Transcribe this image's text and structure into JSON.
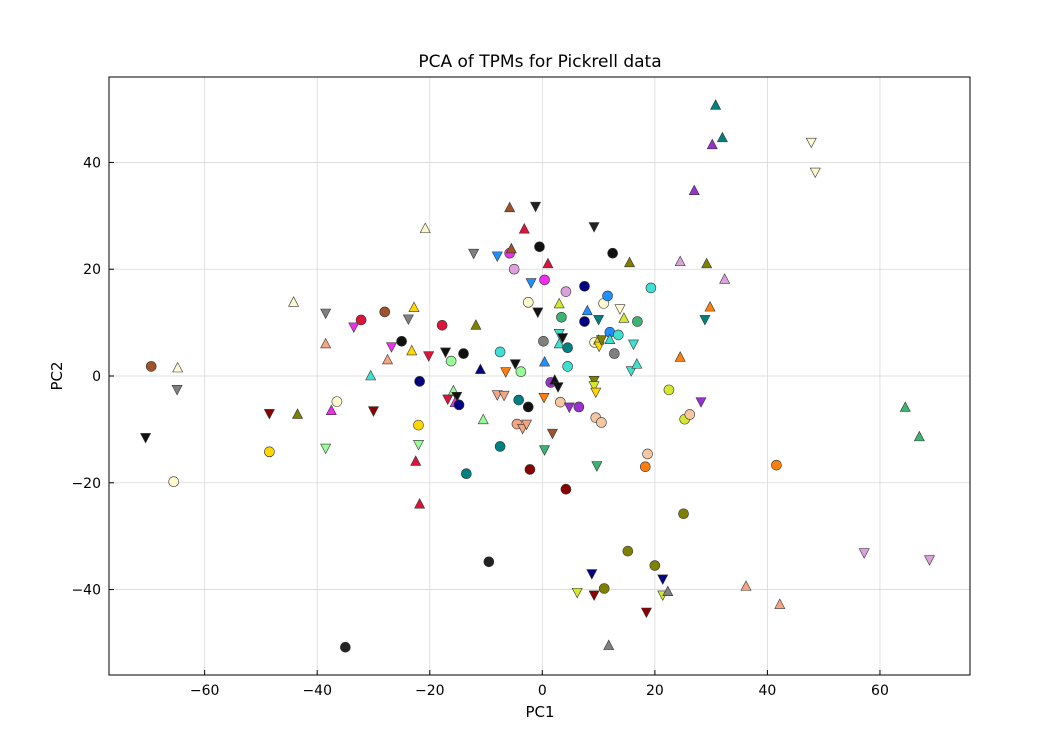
{
  "chart_data": {
    "type": "scatter",
    "title": "PCA of TPMs for Pickrell data",
    "xlabel": "PC1",
    "ylabel": "PC2",
    "xlim": [
      -77,
      76
    ],
    "ylim": [
      -56,
      56
    ],
    "xticks": [
      -60,
      -40,
      -20,
      0,
      20,
      40,
      60
    ],
    "yticks": [
      -40,
      -20,
      0,
      20,
      40
    ],
    "xtick_labels": [
      "−60",
      "−40",
      "−20",
      "0",
      "20",
      "40",
      "60"
    ],
    "ytick_labels": [
      "−40",
      "−20",
      "0",
      "20",
      "40"
    ],
    "grid": true,
    "points": [
      {
        "x": -70.5,
        "y": -11.5,
        "m": "v",
        "c": "#111111"
      },
      {
        "x": -69.5,
        "y": 1.8,
        "m": "o",
        "c": "#a0522d"
      },
      {
        "x": -65.5,
        "y": -19.8,
        "m": "o",
        "c": "#fffacd"
      },
      {
        "x": -64.8,
        "y": 1.5,
        "m": "^",
        "c": "#fffacd"
      },
      {
        "x": -64.9,
        "y": -2.5,
        "m": "v",
        "c": "#808080"
      },
      {
        "x": -48.5,
        "y": -14.2,
        "m": "o",
        "c": "#ffd700"
      },
      {
        "x": -48.5,
        "y": -7.0,
        "m": "v",
        "c": "#8b0000"
      },
      {
        "x": -44.2,
        "y": 13.8,
        "m": "^",
        "c": "#fffacd"
      },
      {
        "x": -43.5,
        "y": -7.2,
        "m": "^",
        "c": "#808000"
      },
      {
        "x": -38.5,
        "y": 11.8,
        "m": "v",
        "c": "#808080"
      },
      {
        "x": -38.5,
        "y": 6.0,
        "m": "^",
        "c": "#f4a582"
      },
      {
        "x": -38.5,
        "y": -13.5,
        "m": "v",
        "c": "#98fb98"
      },
      {
        "x": -37.5,
        "y": -6.5,
        "m": "^",
        "c": "#ee30ee"
      },
      {
        "x": -36.5,
        "y": -4.8,
        "m": "o",
        "c": "#fffacd"
      },
      {
        "x": -35.0,
        "y": -50.8,
        "m": "o",
        "c": "#222222"
      },
      {
        "x": -33.5,
        "y": 9.2,
        "m": "v",
        "c": "#ee30ee"
      },
      {
        "x": -32.2,
        "y": 10.5,
        "m": "o",
        "c": "#dc143c"
      },
      {
        "x": -30.5,
        "y": 0.0,
        "m": "^",
        "c": "#40e0d0"
      },
      {
        "x": -30.0,
        "y": -6.5,
        "m": "v",
        "c": "#8b0000"
      },
      {
        "x": -28.0,
        "y": 12.0,
        "m": "o",
        "c": "#a0522d"
      },
      {
        "x": -27.5,
        "y": 3.0,
        "m": "^",
        "c": "#f4a582"
      },
      {
        "x": -26.8,
        "y": 5.5,
        "m": "v",
        "c": "#ee30ee"
      },
      {
        "x": -25.0,
        "y": 6.5,
        "m": "o",
        "c": "#111111"
      },
      {
        "x": -23.8,
        "y": 10.7,
        "m": "v",
        "c": "#808080"
      },
      {
        "x": -23.2,
        "y": 4.7,
        "m": "^",
        "c": "#ffd700"
      },
      {
        "x": -22.8,
        "y": 12.8,
        "m": "^",
        "c": "#ffd700"
      },
      {
        "x": -22.5,
        "y": -16.0,
        "m": "^",
        "c": "#dc143c"
      },
      {
        "x": -22.0,
        "y": -12.8,
        "m": "v",
        "c": "#98fb98"
      },
      {
        "x": -22.0,
        "y": -9.2,
        "m": "o",
        "c": "#ffd700"
      },
      {
        "x": -21.8,
        "y": -1.0,
        "m": "o",
        "c": "#000080"
      },
      {
        "x": -21.8,
        "y": -24.0,
        "m": "^",
        "c": "#dc143c"
      },
      {
        "x": -20.8,
        "y": 27.6,
        "m": "^",
        "c": "#fffacd"
      },
      {
        "x": -20.2,
        "y": 3.8,
        "m": "v",
        "c": "#dc143c"
      },
      {
        "x": -17.8,
        "y": 9.5,
        "m": "o",
        "c": "#dc143c"
      },
      {
        "x": -17.2,
        "y": 4.5,
        "m": "v",
        "c": "#111111"
      },
      {
        "x": -16.8,
        "y": -4.3,
        "m": "v",
        "c": "#dc143c"
      },
      {
        "x": -16.2,
        "y": 2.8,
        "m": "o",
        "c": "#98fb98"
      },
      {
        "x": -15.8,
        "y": -2.8,
        "m": "^",
        "c": "#98fb98"
      },
      {
        "x": -15.2,
        "y": -3.8,
        "m": "v",
        "c": "#111111"
      },
      {
        "x": -15.5,
        "y": -5.0,
        "m": "^",
        "c": "#ee30ee"
      },
      {
        "x": -14.8,
        "y": -5.4,
        "m": "o",
        "c": "#000080"
      },
      {
        "x": -14.0,
        "y": 4.2,
        "m": "o",
        "c": "#111111"
      },
      {
        "x": -13.5,
        "y": -18.3,
        "m": "o",
        "c": "#008080"
      },
      {
        "x": -12.2,
        "y": 23.0,
        "m": "v",
        "c": "#808080"
      },
      {
        "x": -11.8,
        "y": 9.5,
        "m": "^",
        "c": "#808000"
      },
      {
        "x": -11.0,
        "y": 1.2,
        "m": "^",
        "c": "#000080"
      },
      {
        "x": -10.5,
        "y": -8.2,
        "m": "^",
        "c": "#98fb98"
      },
      {
        "x": -9.5,
        "y": -34.8,
        "m": "o",
        "c": "#222222"
      },
      {
        "x": -8.0,
        "y": 22.5,
        "m": "v",
        "c": "#1e90ff"
      },
      {
        "x": -8.0,
        "y": -3.5,
        "m": "v",
        "c": "#f4a582"
      },
      {
        "x": -7.5,
        "y": 4.5,
        "m": "o",
        "c": "#40e0d0"
      },
      {
        "x": -7.5,
        "y": -13.2,
        "m": "o",
        "c": "#008080"
      },
      {
        "x": -6.8,
        "y": -3.6,
        "m": "v",
        "c": "#f4a582"
      },
      {
        "x": -6.5,
        "y": 0.8,
        "m": "v",
        "c": "#ff7f0e"
      },
      {
        "x": -5.8,
        "y": 23.0,
        "m": "o",
        "c": "#ee30ee"
      },
      {
        "x": -5.8,
        "y": 31.5,
        "m": "^",
        "c": "#a0522d"
      },
      {
        "x": -5.5,
        "y": 23.8,
        "m": "^",
        "c": "#a0522d"
      },
      {
        "x": -5.0,
        "y": 20.0,
        "m": "o",
        "c": "#dda0dd"
      },
      {
        "x": -4.8,
        "y": 2.3,
        "m": "v",
        "c": "#111111"
      },
      {
        "x": -4.5,
        "y": -9.0,
        "m": "o",
        "c": "#f4a582"
      },
      {
        "x": -4.2,
        "y": -4.5,
        "m": "o",
        "c": "#008080"
      },
      {
        "x": -3.8,
        "y": 0.8,
        "m": "o",
        "c": "#98fb98"
      },
      {
        "x": -3.5,
        "y": -9.8,
        "m": "v",
        "c": "#f4a582"
      },
      {
        "x": -3.2,
        "y": 27.5,
        "m": "^",
        "c": "#dc143c"
      },
      {
        "x": -2.8,
        "y": -9.0,
        "m": "v",
        "c": "#f4a582"
      },
      {
        "x": -2.5,
        "y": 13.8,
        "m": "o",
        "c": "#fffacd"
      },
      {
        "x": -2.5,
        "y": -5.8,
        "m": "o",
        "c": "#111111"
      },
      {
        "x": -2.2,
        "y": -17.5,
        "m": "o",
        "c": "#8b0000"
      },
      {
        "x": -2.0,
        "y": 17.5,
        "m": "v",
        "c": "#1e90ff"
      },
      {
        "x": -1.2,
        "y": 31.8,
        "m": "v",
        "c": "#222222"
      },
      {
        "x": -0.8,
        "y": 12.0,
        "m": "v",
        "c": "#111111"
      },
      {
        "x": -0.5,
        "y": 24.2,
        "m": "o",
        "c": "#111111"
      },
      {
        "x": 0.2,
        "y": 6.5,
        "m": "o",
        "c": "#808080"
      },
      {
        "x": 0.3,
        "y": -4.0,
        "m": "v",
        "c": "#ff7f0e"
      },
      {
        "x": 0.4,
        "y": 2.6,
        "m": "^",
        "c": "#1e90ff"
      },
      {
        "x": 0.4,
        "y": -13.8,
        "m": "v",
        "c": "#3cb371"
      },
      {
        "x": 0.4,
        "y": 18.0,
        "m": "o",
        "c": "#ee30ee"
      },
      {
        "x": 1.0,
        "y": 21.0,
        "m": "^",
        "c": "#dc143c"
      },
      {
        "x": 1.5,
        "y": -1.2,
        "m": "o",
        "c": "#9932cc"
      },
      {
        "x": 1.8,
        "y": -10.7,
        "m": "v",
        "c": "#a0522d"
      },
      {
        "x": 2.2,
        "y": -0.8,
        "m": "^",
        "c": "#111111"
      },
      {
        "x": 2.8,
        "y": -2.0,
        "m": "v",
        "c": "#111111"
      },
      {
        "x": 3.0,
        "y": 13.5,
        "m": "^",
        "c": "#d4e830"
      },
      {
        "x": 3.0,
        "y": 8.0,
        "m": "v",
        "c": "#40e0d0"
      },
      {
        "x": 3.0,
        "y": 6.0,
        "m": "^",
        "c": "#40e0d0"
      },
      {
        "x": 3.2,
        "y": -4.9,
        "m": "o",
        "c": "#f4c7a1"
      },
      {
        "x": 3.4,
        "y": 11.0,
        "m": "o",
        "c": "#3cb371"
      },
      {
        "x": 3.6,
        "y": 7.2,
        "m": "v",
        "c": "#111111"
      },
      {
        "x": 4.2,
        "y": 15.8,
        "m": "o",
        "c": "#dda0dd"
      },
      {
        "x": 4.2,
        "y": -21.2,
        "m": "o",
        "c": "#8b0000"
      },
      {
        "x": 4.5,
        "y": 5.3,
        "m": "o",
        "c": "#008080"
      },
      {
        "x": 4.5,
        "y": 1.8,
        "m": "o",
        "c": "#40e0d0"
      },
      {
        "x": 4.8,
        "y": -5.8,
        "m": "v",
        "c": "#9932cc"
      },
      {
        "x": 6.2,
        "y": -40.5,
        "m": "v",
        "c": "#d4e830"
      },
      {
        "x": 6.5,
        "y": -5.8,
        "m": "o",
        "c": "#9932cc"
      },
      {
        "x": 7.5,
        "y": 16.8,
        "m": "o",
        "c": "#000080"
      },
      {
        "x": 7.5,
        "y": 10.2,
        "m": "o",
        "c": "#000080"
      },
      {
        "x": 8.0,
        "y": 12.2,
        "m": "^",
        "c": "#1e90ff"
      },
      {
        "x": 8.8,
        "y": -37.0,
        "m": "v",
        "c": "#000080"
      },
      {
        "x": 9.2,
        "y": 28.0,
        "m": "v",
        "c": "#222222"
      },
      {
        "x": 9.2,
        "y": -0.8,
        "m": "v",
        "c": "#808000"
      },
      {
        "x": 9.2,
        "y": -1.8,
        "m": "v",
        "c": "#d4e830"
      },
      {
        "x": 9.2,
        "y": -41.0,
        "m": "v",
        "c": "#8b0000"
      },
      {
        "x": 9.3,
        "y": 6.3,
        "m": "o",
        "c": "#fffacd"
      },
      {
        "x": 9.5,
        "y": -3.0,
        "m": "v",
        "c": "#ffd700"
      },
      {
        "x": 9.5,
        "y": -7.8,
        "m": "o",
        "c": "#f4c7a1"
      },
      {
        "x": 9.7,
        "y": -16.8,
        "m": "v",
        "c": "#3cb371"
      },
      {
        "x": 10.0,
        "y": 10.6,
        "m": "v",
        "c": "#008080"
      },
      {
        "x": 10.0,
        "y": 6.7,
        "m": "^",
        "c": "#d4e830"
      },
      {
        "x": 10.1,
        "y": 5.6,
        "m": "v",
        "c": "#ffd700"
      },
      {
        "x": 10.5,
        "y": 6.8,
        "m": "v",
        "c": "#808000"
      },
      {
        "x": 10.5,
        "y": -8.7,
        "m": "o",
        "c": "#f4c7a1"
      },
      {
        "x": 10.9,
        "y": 13.6,
        "m": "o",
        "c": "#fffacd"
      },
      {
        "x": 11.0,
        "y": -39.8,
        "m": "o",
        "c": "#808000"
      },
      {
        "x": 11.6,
        "y": 15.0,
        "m": "o",
        "c": "#1e90ff"
      },
      {
        "x": 11.8,
        "y": -50.5,
        "m": "^",
        "c": "#808080"
      },
      {
        "x": 12.0,
        "y": 8.2,
        "m": "o",
        "c": "#1e90ff"
      },
      {
        "x": 12.0,
        "y": 6.8,
        "m": "^",
        "c": "#40e0d0"
      },
      {
        "x": 12.5,
        "y": 23.0,
        "m": "o",
        "c": "#111111"
      },
      {
        "x": 12.8,
        "y": 4.2,
        "m": "o",
        "c": "#808080"
      },
      {
        "x": 13.5,
        "y": 7.7,
        "m": "o",
        "c": "#40e0d0"
      },
      {
        "x": 13.8,
        "y": 12.6,
        "m": "v",
        "c": "#fffacd"
      },
      {
        "x": 14.5,
        "y": 10.8,
        "m": "^",
        "c": "#d4e830"
      },
      {
        "x": 15.2,
        "y": -32.8,
        "m": "o",
        "c": "#808000"
      },
      {
        "x": 15.5,
        "y": 21.2,
        "m": "^",
        "c": "#808000"
      },
      {
        "x": 15.8,
        "y": 1.0,
        "m": "v",
        "c": "#40e0d0"
      },
      {
        "x": 16.2,
        "y": 6.0,
        "m": "v",
        "c": "#40e0d0"
      },
      {
        "x": 16.8,
        "y": 2.2,
        "m": "^",
        "c": "#40e0d0"
      },
      {
        "x": 16.9,
        "y": 10.2,
        "m": "o",
        "c": "#3cb371"
      },
      {
        "x": 18.3,
        "y": -17.0,
        "m": "o",
        "c": "#ff7f0e"
      },
      {
        "x": 18.5,
        "y": -44.2,
        "m": "v",
        "c": "#8b0000"
      },
      {
        "x": 18.7,
        "y": -14.6,
        "m": "o",
        "c": "#f4c7a1"
      },
      {
        "x": 19.3,
        "y": 16.5,
        "m": "o",
        "c": "#40e0d0"
      },
      {
        "x": 20.0,
        "y": -35.5,
        "m": "o",
        "c": "#808000"
      },
      {
        "x": 21.4,
        "y": -38.0,
        "m": "v",
        "c": "#000080"
      },
      {
        "x": 21.4,
        "y": -41.0,
        "m": "v",
        "c": "#d4e830"
      },
      {
        "x": 22.3,
        "y": -40.4,
        "m": "^",
        "c": "#808080"
      },
      {
        "x": 22.5,
        "y": -2.6,
        "m": "o",
        "c": "#d4e830"
      },
      {
        "x": 24.5,
        "y": 21.4,
        "m": "^",
        "c": "#dda0dd"
      },
      {
        "x": 24.5,
        "y": 3.5,
        "m": "^",
        "c": "#ff7f0e"
      },
      {
        "x": 25.1,
        "y": -25.8,
        "m": "o",
        "c": "#808000"
      },
      {
        "x": 25.3,
        "y": -8.1,
        "m": "o",
        "c": "#d4e830"
      },
      {
        "x": 26.2,
        "y": -7.2,
        "m": "o",
        "c": "#f4c7a1"
      },
      {
        "x": 27.0,
        "y": 34.7,
        "m": "^",
        "c": "#9932cc"
      },
      {
        "x": 28.2,
        "y": -4.8,
        "m": "v",
        "c": "#9932cc"
      },
      {
        "x": 28.9,
        "y": 10.6,
        "m": "v",
        "c": "#008080"
      },
      {
        "x": 29.2,
        "y": 21.0,
        "m": "^",
        "c": "#808000"
      },
      {
        "x": 29.8,
        "y": 12.9,
        "m": "^",
        "c": "#ff7f0e"
      },
      {
        "x": 30.2,
        "y": 43.3,
        "m": "^",
        "c": "#9932cc"
      },
      {
        "x": 30.8,
        "y": 50.7,
        "m": "^",
        "c": "#008080"
      },
      {
        "x": 32.0,
        "y": 44.6,
        "m": "^",
        "c": "#008080"
      },
      {
        "x": 32.4,
        "y": 18.1,
        "m": "^",
        "c": "#dda0dd"
      },
      {
        "x": 36.2,
        "y": -39.4,
        "m": "^",
        "c": "#f4a582"
      },
      {
        "x": 41.6,
        "y": -16.7,
        "m": "o",
        "c": "#ff7f0e"
      },
      {
        "x": 42.2,
        "y": -42.8,
        "m": "^",
        "c": "#f4a582"
      },
      {
        "x": 47.8,
        "y": 43.8,
        "m": "v",
        "c": "#fffacd"
      },
      {
        "x": 48.5,
        "y": 38.2,
        "m": "v",
        "c": "#fffacd"
      },
      {
        "x": 57.2,
        "y": -33.1,
        "m": "v",
        "c": "#dda0dd"
      },
      {
        "x": 64.5,
        "y": -5.9,
        "m": "^",
        "c": "#3cb371"
      },
      {
        "x": 67.0,
        "y": -11.4,
        "m": "^",
        "c": "#3cb371"
      },
      {
        "x": 68.8,
        "y": -34.4,
        "m": "v",
        "c": "#dda0dd"
      }
    ]
  }
}
